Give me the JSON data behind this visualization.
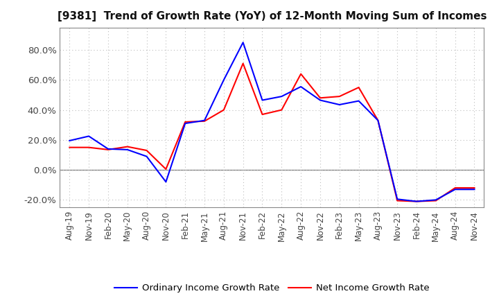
{
  "title": "[9381]  Trend of Growth Rate (YoY) of 12-Month Moving Sum of Incomes",
  "ordinary_income": {
    "dates": [
      "Aug-19",
      "Nov-19",
      "Feb-20",
      "May-20",
      "Aug-20",
      "Nov-20",
      "Feb-21",
      "May-21",
      "Aug-21",
      "Nov-21",
      "Feb-22",
      "May-22",
      "Aug-22",
      "Nov-22",
      "Feb-23",
      "May-23",
      "Aug-23",
      "Nov-23",
      "Feb-24",
      "May-24",
      "Aug-24",
      "Nov-24"
    ],
    "values": [
      19.5,
      22.5,
      14.0,
      13.5,
      9.0,
      -8.0,
      31.0,
      33.0,
      60.0,
      85.0,
      46.5,
      49.0,
      55.5,
      46.5,
      43.5,
      46.0,
      33.0,
      -19.5,
      -21.0,
      -20.0,
      -13.0,
      -13.0
    ]
  },
  "net_income": {
    "dates": [
      "Aug-19",
      "Nov-19",
      "Feb-20",
      "May-20",
      "Aug-20",
      "Nov-20",
      "Feb-21",
      "May-21",
      "Aug-21",
      "Nov-21",
      "Feb-22",
      "May-22",
      "Aug-22",
      "Nov-22",
      "Feb-23",
      "May-23",
      "Aug-23",
      "Nov-23",
      "Feb-24",
      "May-24",
      "Aug-24",
      "Nov-24"
    ],
    "values": [
      15.0,
      15.0,
      13.5,
      15.5,
      13.0,
      0.5,
      32.0,
      32.5,
      40.0,
      71.0,
      37.0,
      40.0,
      64.0,
      48.0,
      49.0,
      55.0,
      33.0,
      -20.5,
      -21.0,
      -20.5,
      -12.0,
      -12.0
    ]
  },
  "ordinary_color": "#0000ff",
  "net_color": "#ff0000",
  "background_color": "#ffffff",
  "grid_color": "#bbbbbb",
  "ylim": [
    -25,
    95
  ],
  "yticks": [
    -20,
    0,
    20,
    40,
    60,
    80
  ],
  "legend_labels": [
    "Ordinary Income Growth Rate",
    "Net Income Growth Rate"
  ],
  "line_width": 1.5,
  "title_fontsize": 11,
  "tick_fontsize": 8.5,
  "ytick_fontsize": 9.5,
  "legend_fontsize": 9.5
}
